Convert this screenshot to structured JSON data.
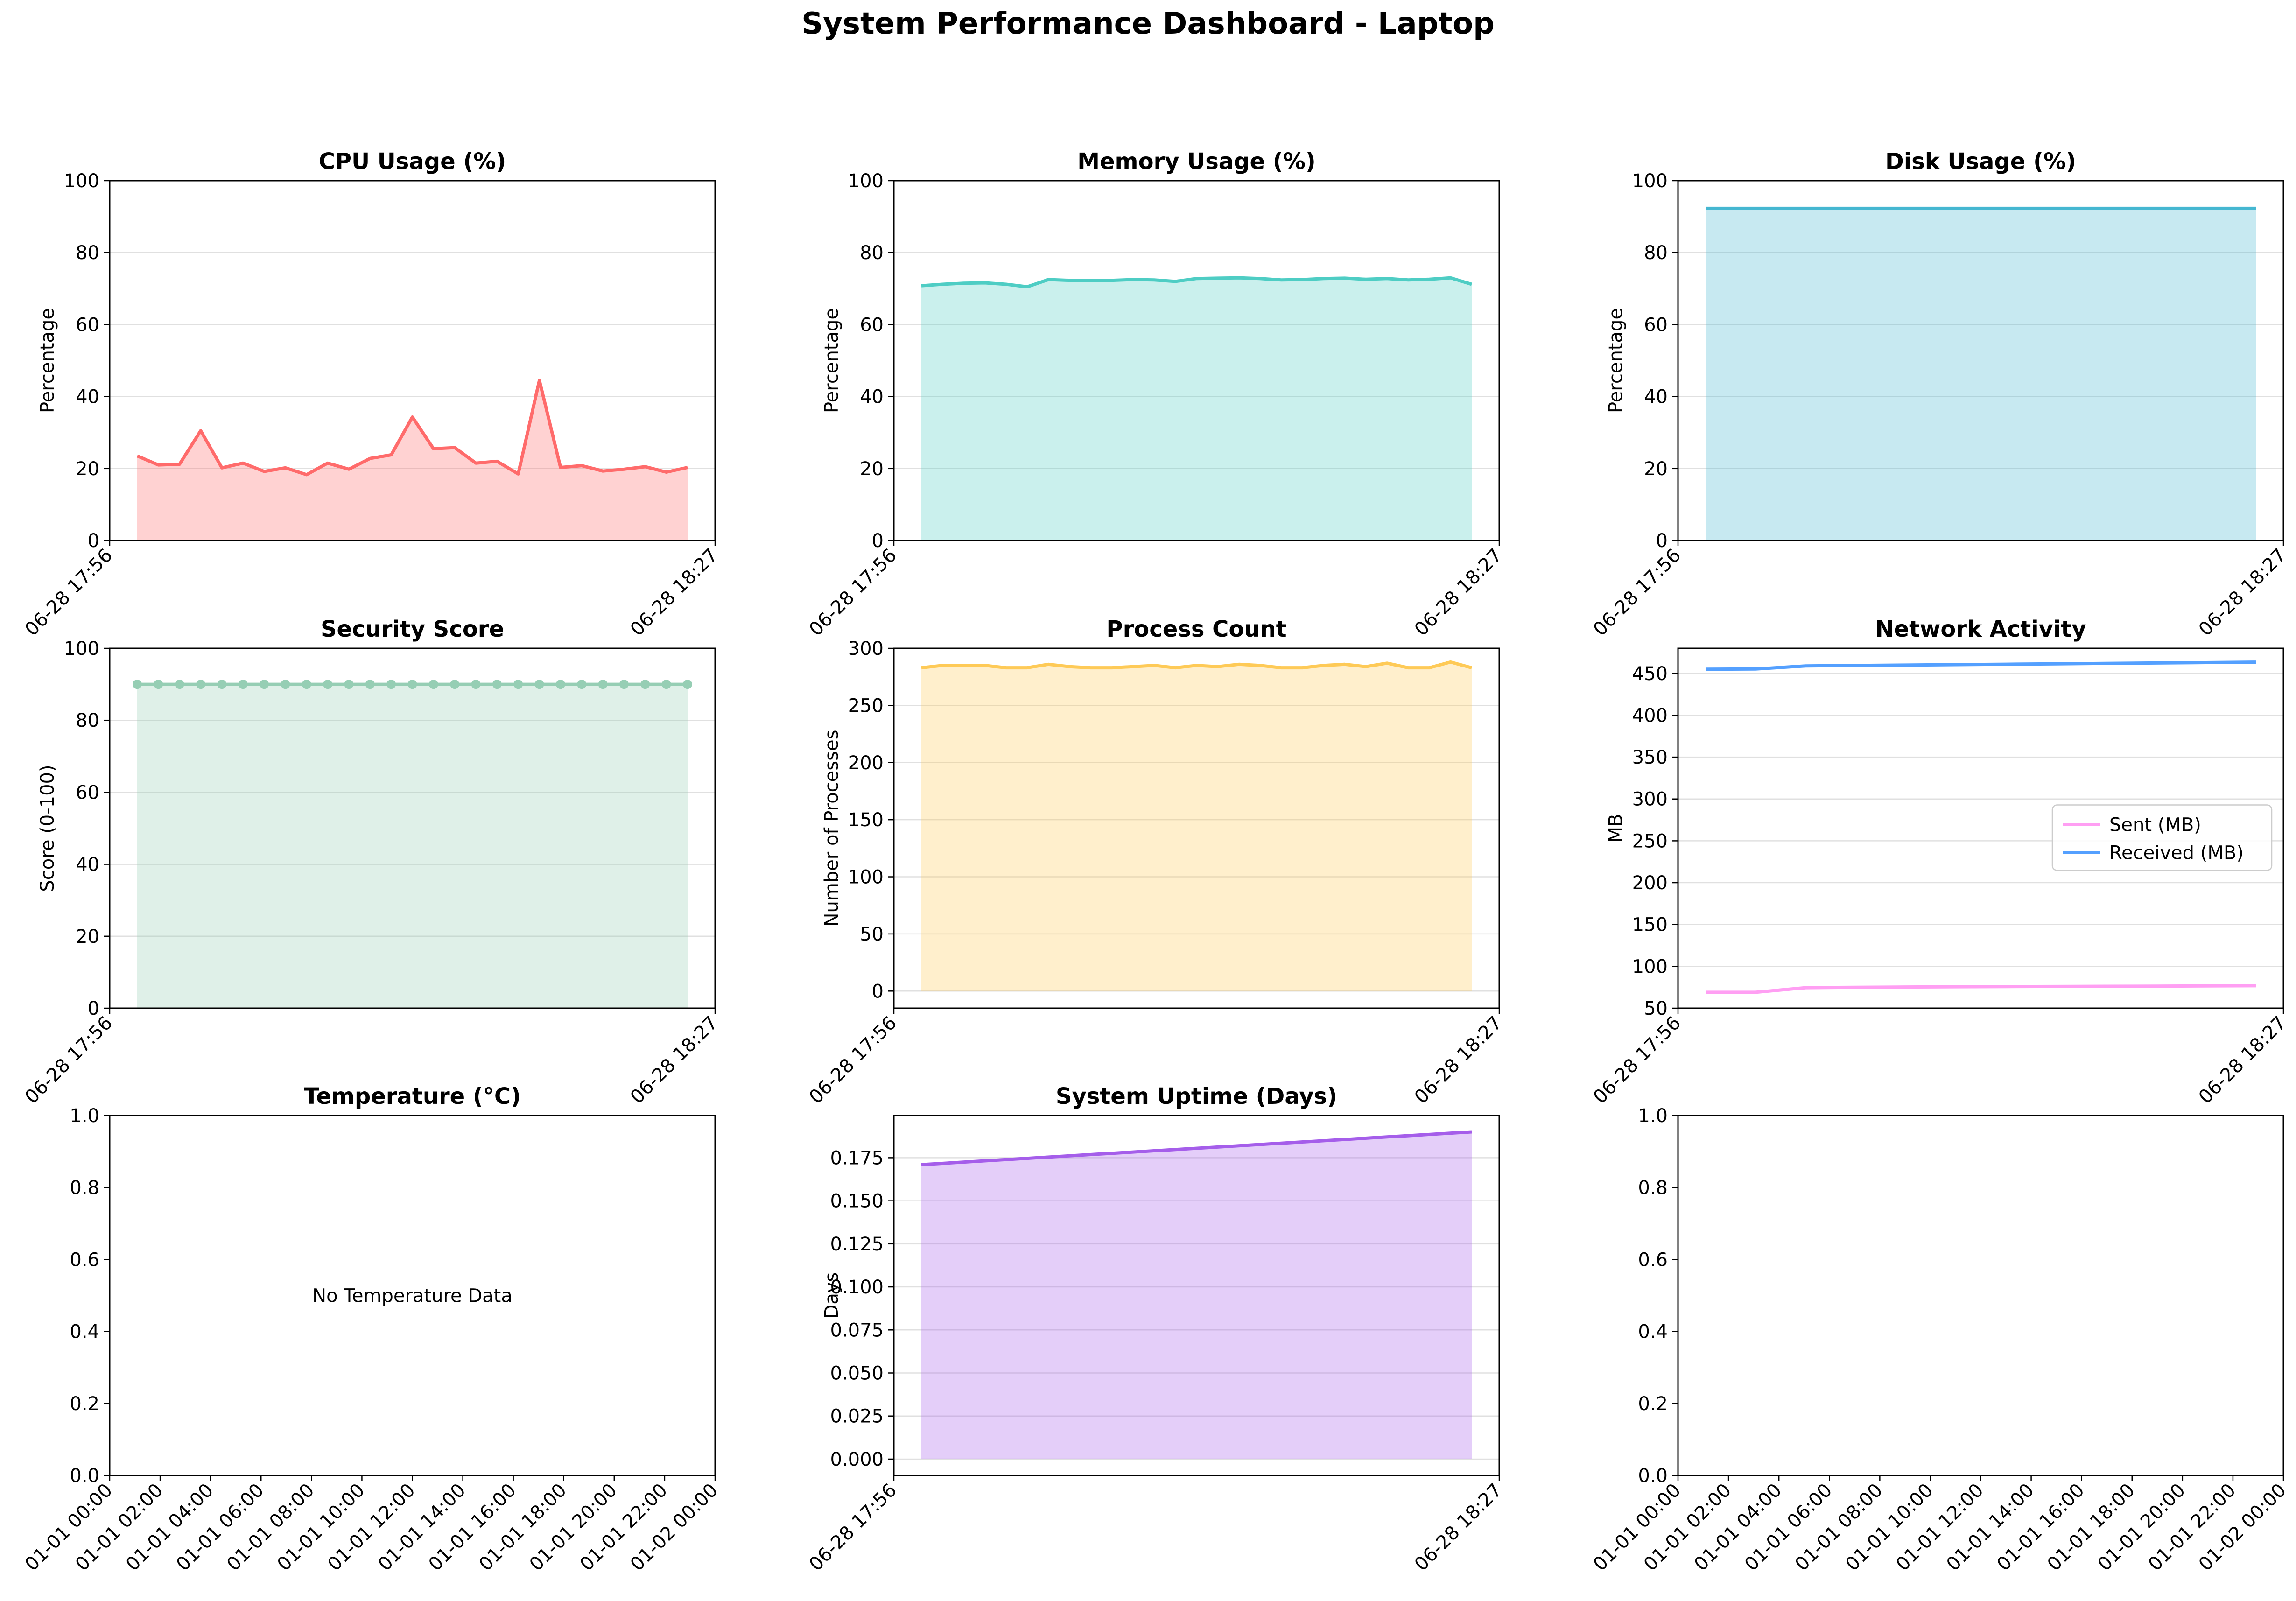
{
  "title": "System Performance Dashboard - Laptop",
  "time_ticks": [
    "06-28 17:56",
    "06-28 18:27"
  ],
  "chart_data": [
    {
      "type": "area",
      "title": "CPU Usage (%)",
      "ylabel": "Percentage",
      "ylim": [
        0,
        100
      ],
      "yticks": [
        "0",
        "20",
        "40",
        "60",
        "80",
        "100"
      ],
      "x_range": [
        "06-28 17:56",
        "06-28 18:27"
      ],
      "xticks": [
        "06-28 17:56",
        "06-28 18:27"
      ],
      "grid": true,
      "color": "#ff6b6b",
      "values": [
        23.5,
        21,
        21.2,
        30.5,
        20.2,
        21.5,
        19.2,
        20.2,
        18.3,
        21.5,
        19.8,
        22.8,
        23.8,
        34.3,
        25.5,
        25.8,
        21.5,
        22,
        18.5,
        44.5,
        20.3,
        20.8,
        19.3,
        19.8,
        20.5,
        19,
        20.3
      ]
    },
    {
      "type": "area",
      "title": "Memory Usage (%)",
      "ylabel": "Percentage",
      "ylim": [
        0,
        100
      ],
      "yticks": [
        "0",
        "20",
        "40",
        "60",
        "80",
        "100"
      ],
      "xticks": [
        "06-28 17:56",
        "06-28 18:27"
      ],
      "grid": true,
      "color": "#4ecdc4",
      "values": [
        70.8,
        71.2,
        71.5,
        71.6,
        71.2,
        70.5,
        72.5,
        72.3,
        72.2,
        72.3,
        72.5,
        72.4,
        72,
        72.8,
        72.9,
        73,
        72.8,
        72.4,
        72.5,
        72.8,
        72.9,
        72.6,
        72.8,
        72.4,
        72.6,
        73,
        71.2
      ]
    },
    {
      "type": "area",
      "title": "Disk Usage (%)",
      "ylabel": "Percentage",
      "ylim": [
        0,
        100
      ],
      "yticks": [
        "0",
        "20",
        "40",
        "60",
        "80",
        "100"
      ],
      "xticks": [
        "06-28 17:56",
        "06-28 18:27"
      ],
      "grid": true,
      "color": "#45b7d1",
      "values": [
        92.3,
        92.3,
        92.3,
        92.3,
        92.3,
        92.3,
        92.3,
        92.3,
        92.3,
        92.3,
        92.3,
        92.3,
        92.3,
        92.3,
        92.3,
        92.3,
        92.3,
        92.3,
        92.3,
        92.3,
        92.3,
        92.3,
        92.3,
        92.3,
        92.3,
        92.3,
        92.3
      ]
    },
    {
      "type": "area",
      "title": "Security Score",
      "ylabel": "Score (0-100)",
      "ylim": [
        0,
        100
      ],
      "yticks": [
        "0",
        "20",
        "40",
        "60",
        "80",
        "100"
      ],
      "xticks": [
        "06-28 17:56",
        "06-28 18:27"
      ],
      "grid": true,
      "markers": true,
      "color": "#96ceb4",
      "values": [
        90,
        90,
        90,
        90,
        90,
        90,
        90,
        90,
        90,
        90,
        90,
        90,
        90,
        90,
        90,
        90,
        90,
        90,
        90,
        90,
        90,
        90,
        90,
        90,
        90,
        90,
        90
      ]
    },
    {
      "type": "area",
      "title": "Process Count",
      "ylabel": "Number of Processes",
      "ylim": [
        -15,
        300
      ],
      "yticks": [
        "0",
        "50",
        "100",
        "150",
        "200",
        "250",
        "300"
      ],
      "xticks": [
        "06-28 17:56",
        "06-28 18:27"
      ],
      "grid": true,
      "color": "#feca57",
      "values": [
        283,
        285,
        285,
        285,
        283,
        283,
        286,
        284,
        283,
        283,
        284,
        285,
        283,
        285,
        284,
        286,
        285,
        283,
        283,
        285,
        286,
        284,
        287,
        283,
        283,
        288,
        283
      ]
    },
    {
      "type": "line",
      "title": "Network Activity",
      "ylabel": "MB",
      "ylim": [
        50,
        480
      ],
      "yticks": [
        "50",
        "100",
        "150",
        "200",
        "250",
        "300",
        "350",
        "400",
        "450"
      ],
      "xticks": [
        "06-28 17:56",
        "06-28 18:27"
      ],
      "grid": true,
      "legend": "center-right",
      "series": [
        {
          "name": "Sent (MB)",
          "color": "#ff9ff3",
          "values": [
            69,
            69,
            74.5,
            75,
            75.3,
            75.6,
            75.8,
            76,
            76.2,
            76.4,
            76.6,
            76.8
          ]
        },
        {
          "name": "Received (MB)",
          "color": "#54a0ff",
          "values": [
            455,
            455.3,
            459,
            459.5,
            460,
            460.5,
            461,
            461.5,
            462,
            462.5,
            463,
            463.5
          ]
        }
      ]
    },
    {
      "type": "empty",
      "title": "Temperature (°C)",
      "annotation": "No Temperature Data",
      "ylim": [
        0,
        1
      ],
      "yticks": [
        "0.0",
        "0.2",
        "0.4",
        "0.6",
        "0.8",
        "1.0"
      ],
      "xticks": [
        "01-01 00:00",
        "01-01 02:00",
        "01-01 04:00",
        "01-01 06:00",
        "01-01 08:00",
        "01-01 10:00",
        "01-01 12:00",
        "01-01 14:00",
        "01-01 16:00",
        "01-01 18:00",
        "01-01 20:00",
        "01-01 22:00",
        "01-02 00:00"
      ]
    },
    {
      "type": "area",
      "title": "System Uptime (Days)",
      "ylabel": "Days",
      "ylim": [
        -0.0095,
        0.1995
      ],
      "yticks": [
        "0.000",
        "0.025",
        "0.050",
        "0.075",
        "0.100",
        "0.125",
        "0.150",
        "0.175"
      ],
      "xticks": [
        "06-28 17:56",
        "06-28 18:27"
      ],
      "grid": true,
      "color": "#a55eea",
      "values": [
        0.171,
        0.19
      ]
    },
    {
      "type": "empty",
      "title": "",
      "ylim": [
        0,
        1
      ],
      "yticks": [
        "0.0",
        "0.2",
        "0.4",
        "0.6",
        "0.8",
        "1.0"
      ],
      "xticks": [
        "01-01 00:00",
        "01-01 02:00",
        "01-01 04:00",
        "01-01 06:00",
        "01-01 08:00",
        "01-01 10:00",
        "01-01 12:00",
        "01-01 14:00",
        "01-01 16:00",
        "01-01 18:00",
        "01-01 20:00",
        "01-01 22:00",
        "01-02 00:00"
      ]
    }
  ]
}
